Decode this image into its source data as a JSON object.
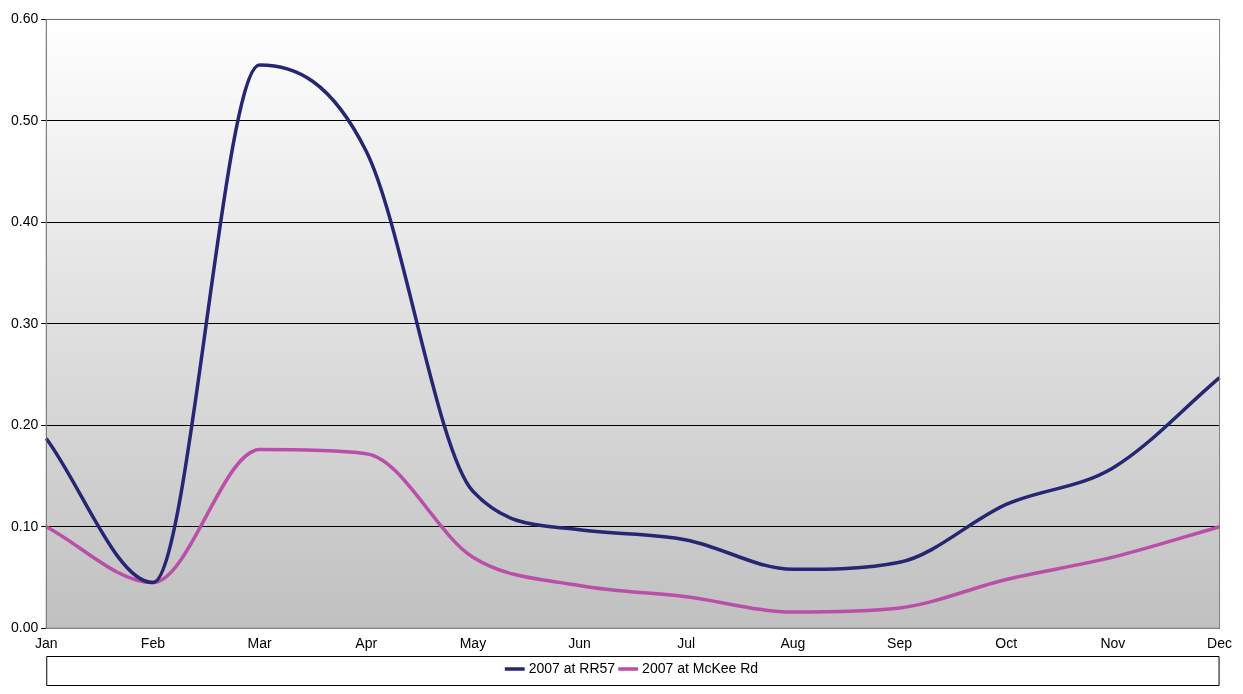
{
  "chart_data": {
    "type": "line",
    "categories": [
      "Jan",
      "Feb",
      "Mar",
      "Apr",
      "May",
      "Jun",
      "Jul",
      "Aug",
      "Sep",
      "Oct",
      "Nov",
      "Dec"
    ],
    "series": [
      {
        "name": "2007 at RR57",
        "color": "#262673",
        "values": [
          0.187,
          0.045,
          0.555,
          0.47,
          0.135,
          0.097,
          0.087,
          0.058,
          0.065,
          0.122,
          0.158,
          0.247
        ]
      },
      {
        "name": "2007 at McKee Rd",
        "color": "#b94fa9",
        "values": [
          0.1,
          0.045,
          0.176,
          0.172,
          0.07,
          0.042,
          0.031,
          0.016,
          0.02,
          0.048,
          0.07,
          0.1
        ]
      }
    ],
    "ylim": [
      0,
      0.6
    ],
    "yticks": [
      {
        "value": 0,
        "label": "0.00"
      },
      {
        "value": 0.1,
        "label": "0.10"
      },
      {
        "value": 0.2,
        "label": "0.20"
      },
      {
        "value": 0.3,
        "label": "0.30"
      },
      {
        "value": 0.4,
        "label": "0.40"
      },
      {
        "value": 0.5,
        "label": "0.50"
      },
      {
        "value": 0.6,
        "label": "0.60"
      }
    ],
    "grid": "y",
    "legend": "bottom",
    "marker": "none",
    "line_style": "solid"
  }
}
